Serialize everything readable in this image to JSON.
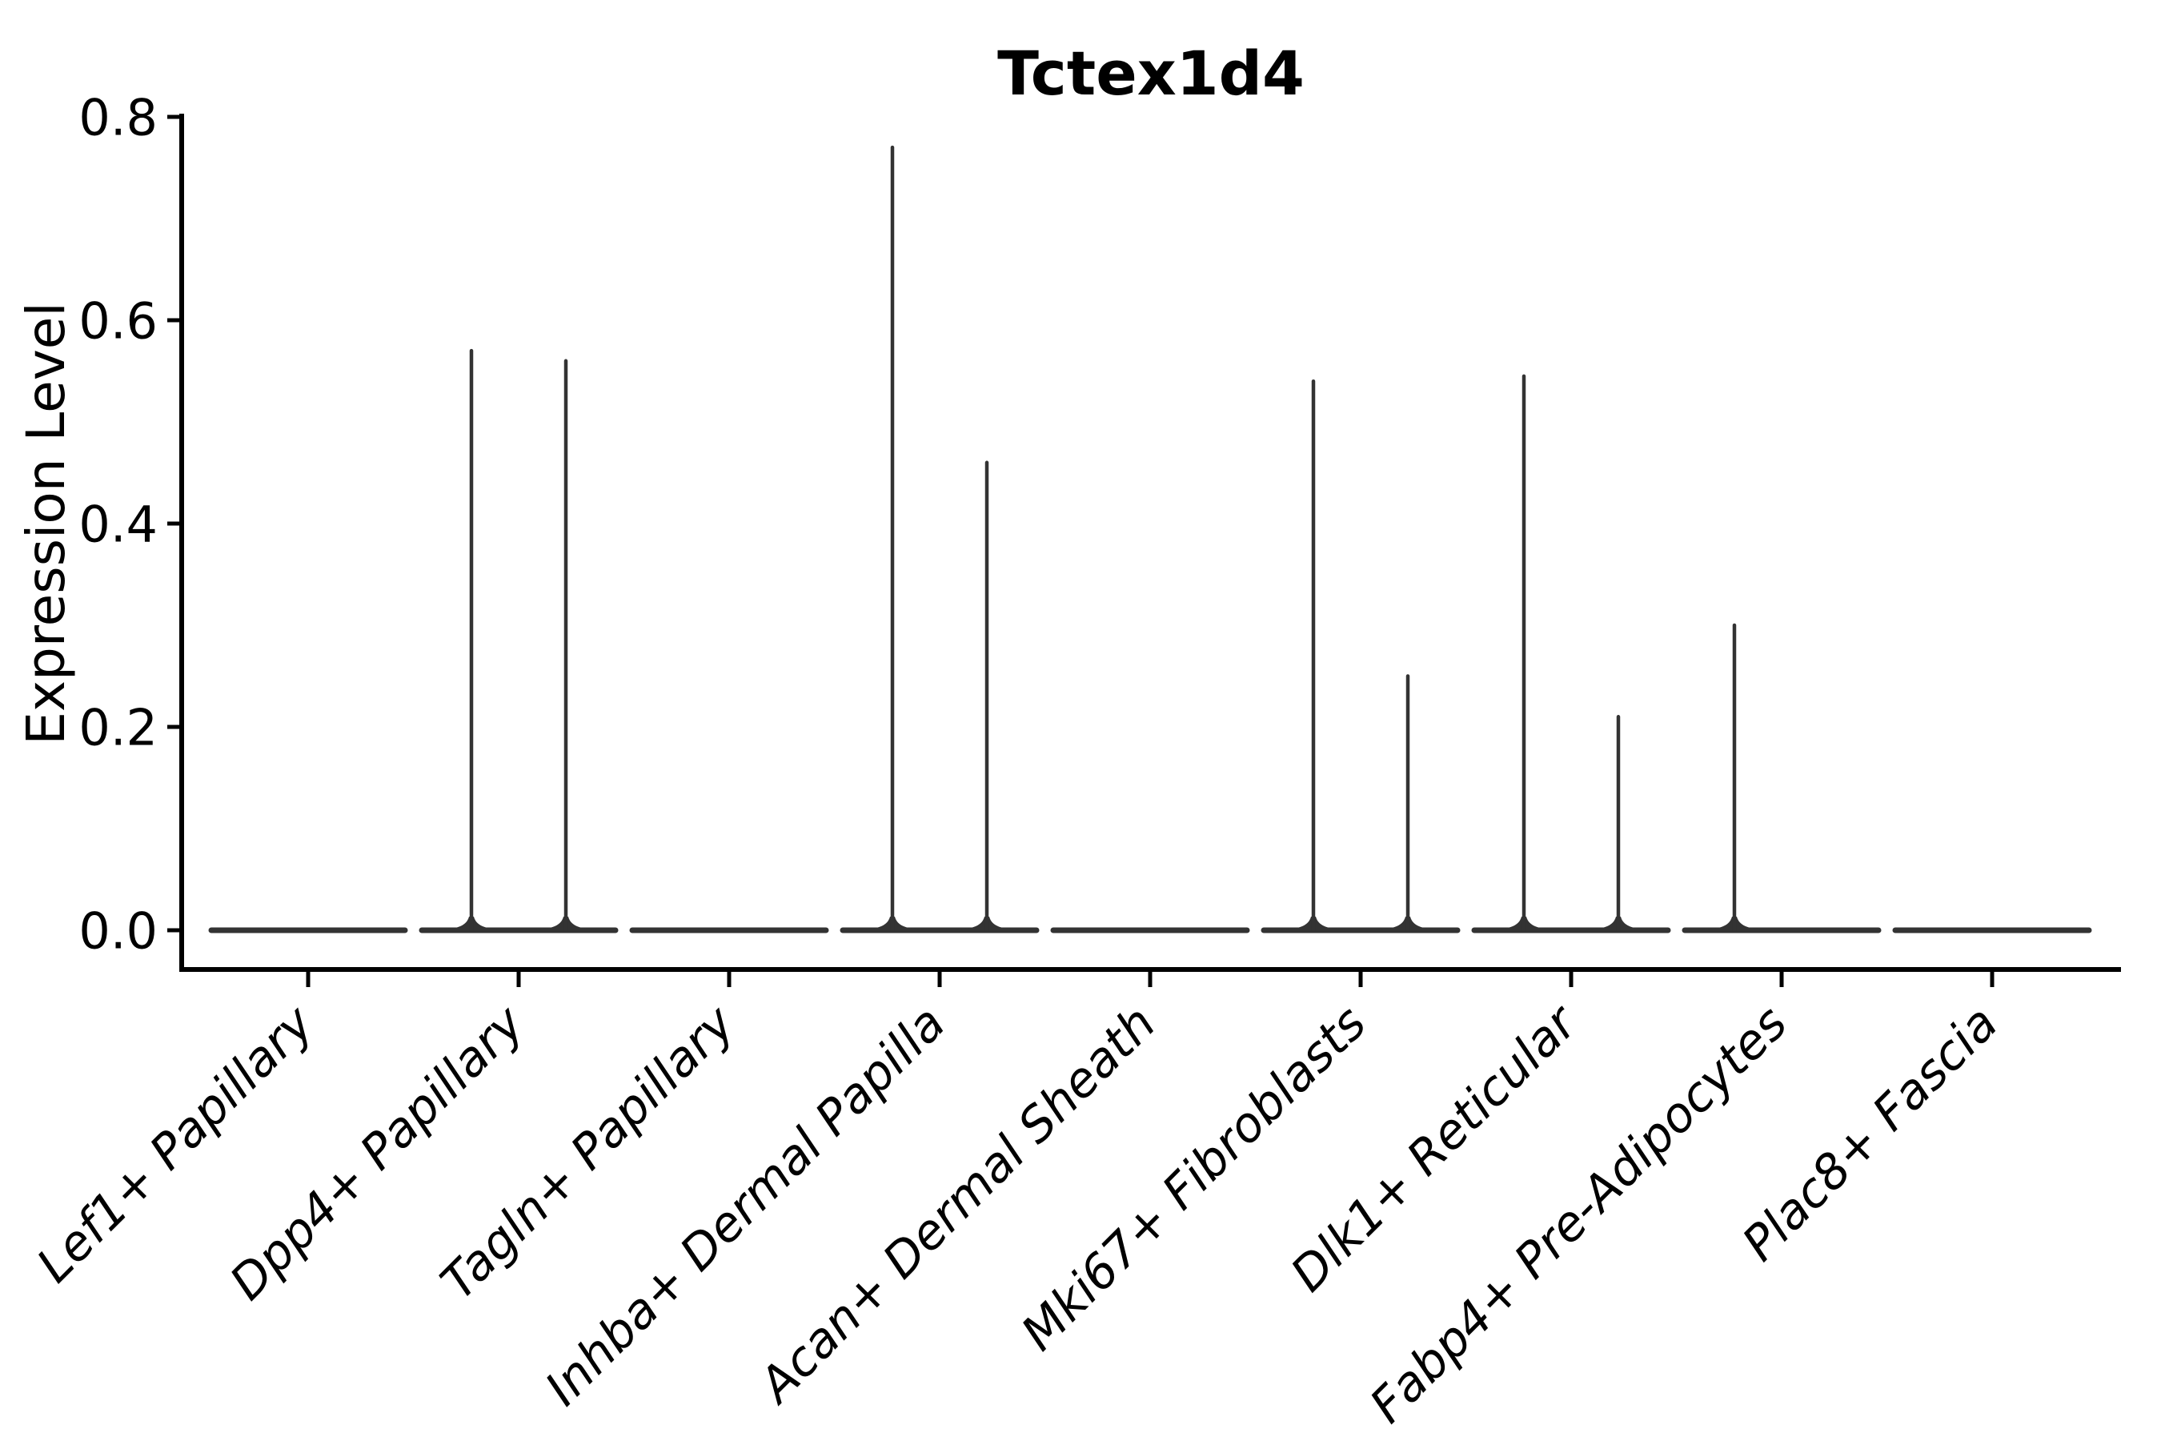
{
  "figure": {
    "title": "Tctex1d4",
    "background_color": "#ffffff"
  },
  "chart_data": {
    "type": "violin",
    "title": "Tctex1d4",
    "xlabel": "",
    "ylabel": "Expression Level",
    "ylim": [
      0,
      0.8
    ],
    "ytick_labels": [
      "0.0",
      "0.2",
      "0.4",
      "0.6",
      "0.8"
    ],
    "ytick_values": [
      0.0,
      0.2,
      0.4,
      0.6,
      0.8
    ],
    "grid": false,
    "legend_position": "none",
    "categories": [
      "Lef1+ Papillary",
      "Dpp4+ Papillary",
      "Tagln+ Papillary",
      "Inhba+ Dermal Papilla",
      "Acan+ Dermal Sheath",
      "Mki67+ Fibroblasts",
      "Dlk1+ Reticular",
      "Fabp4+ Pre-Adipocytes",
      "Plac8+ Fascia"
    ],
    "violins": [
      {
        "category": "Lef1+ Papillary",
        "base_value": 0.0,
        "spikes": []
      },
      {
        "category": "Dpp4+ Papillary",
        "base_value": 0.0,
        "spikes": [
          {
            "side": "left",
            "max": 0.57
          },
          {
            "side": "right",
            "max": 0.56
          }
        ]
      },
      {
        "category": "Tagln+ Papillary",
        "base_value": 0.0,
        "spikes": []
      },
      {
        "category": "Inhba+ Dermal Papilla",
        "base_value": 0.0,
        "spikes": [
          {
            "side": "left",
            "max": 0.77
          },
          {
            "side": "right",
            "max": 0.46
          }
        ]
      },
      {
        "category": "Acan+ Dermal Sheath",
        "base_value": 0.0,
        "spikes": []
      },
      {
        "category": "Mki67+ Fibroblasts",
        "base_value": 0.0,
        "spikes": [
          {
            "side": "left",
            "max": 0.54
          },
          {
            "side": "right",
            "max": 0.25
          }
        ]
      },
      {
        "category": "Dlk1+ Reticular",
        "base_value": 0.0,
        "spikes": [
          {
            "side": "left",
            "max": 0.545
          },
          {
            "side": "right",
            "max": 0.21
          }
        ]
      },
      {
        "category": "Fabp4+ Pre-Adipocytes",
        "base_value": 0.0,
        "spikes": [
          {
            "side": "left",
            "max": 0.3
          }
        ]
      },
      {
        "category": "Plac8+ Fascia",
        "base_value": 0.0,
        "spikes": []
      }
    ],
    "colors": {
      "violin_stroke": "#333333",
      "axis": "#000000",
      "text": "#000000"
    }
  }
}
